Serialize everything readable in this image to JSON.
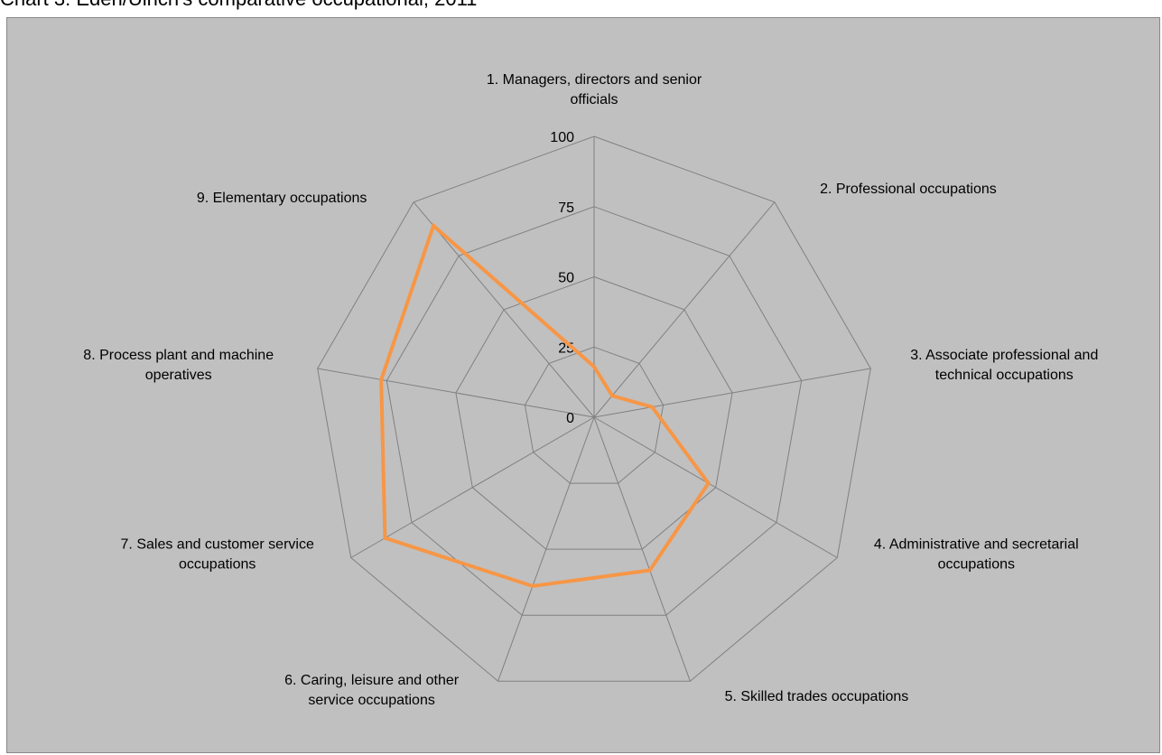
{
  "chart_data": {
    "type": "radar",
    "title": "Chart 3: Eden/Ulrich's comparative occupational, 2011",
    "categories": [
      [
        "1. Managers, directors and senior",
        "officials"
      ],
      [
        "2. Professional occupations"
      ],
      [
        "3. Associate professional and",
        "technical occupations"
      ],
      [
        "4. Administrative and secretarial",
        "occupations"
      ],
      [
        "5. Skilled trades occupations"
      ],
      [
        "6. Caring, leisure and other",
        "service occupations"
      ],
      [
        "7. Sales and customer service",
        "occupations"
      ],
      [
        "8. Process plant and machine",
        "operatives"
      ],
      [
        "9. Elementary occupations"
      ]
    ],
    "rticks": [
      "0",
      "25",
      "50",
      "75",
      "100"
    ],
    "rlim": [
      0,
      100
    ],
    "series": [
      {
        "values": [
          18,
          10,
          21,
          47,
          58,
          64,
          86,
          77,
          89
        ]
      }
    ],
    "colors": {
      "series": "#f79646",
      "grid": "#808080",
      "plot_bg": "#c0c0c0"
    }
  }
}
